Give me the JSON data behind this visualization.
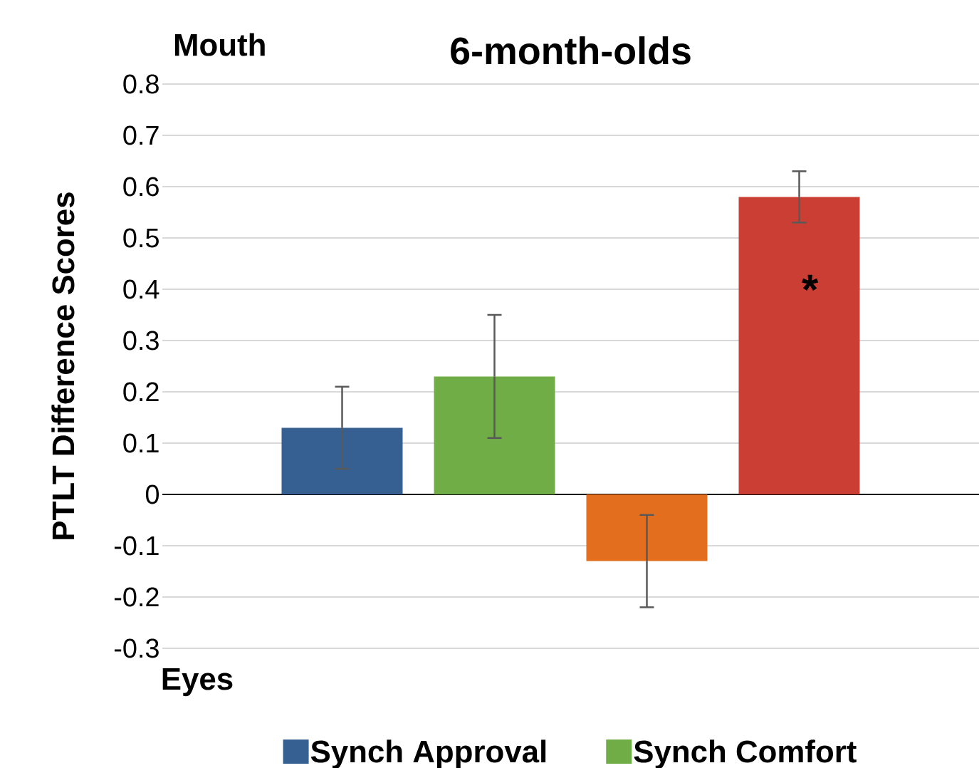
{
  "chart_data": {
    "type": "bar",
    "title": "6-month-olds",
    "ylabel": "PTLT Difference Scores",
    "categories": [
      null
    ],
    "series": [
      {
        "name": "Synch Approval",
        "color": "#376092",
        "values": [
          0.13
        ],
        "errors": [
          [
            0.05,
            0.21
          ]
        ]
      },
      {
        "name": "Synch Comfort",
        "color": "#70ad47",
        "values": [
          0.23
        ],
        "errors": [
          [
            0.11,
            0.35
          ]
        ]
      },
      {
        "color": "#e36f1e",
        "values": [
          -0.13
        ],
        "errors": [
          [
            -0.22,
            -0.04
          ]
        ]
      },
      {
        "color": "#cb3e33",
        "values": [
          0.58
        ],
        "errors": [
          [
            0.53,
            0.63
          ]
        ]
      }
    ],
    "ylim": [
      -0.3,
      0.8
    ],
    "yticks": [
      -0.3,
      -0.2,
      -0.1,
      0,
      0.1,
      0.2,
      0.3,
      0.4,
      0.5,
      0.6,
      0.7,
      0.8
    ],
    "grid": "y",
    "legend": "bottom",
    "annotations": [
      "Mouth",
      "Eyes",
      "*"
    ]
  }
}
